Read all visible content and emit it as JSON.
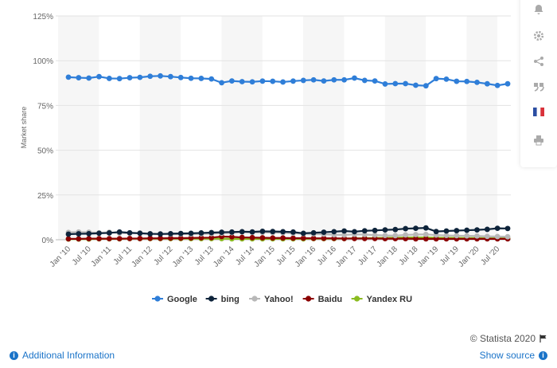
{
  "chart_data": {
    "type": "line",
    "ylabel": "Market share",
    "yticks": [
      "0%",
      "25%",
      "50%",
      "75%",
      "100%",
      "125%"
    ],
    "ylim": [
      0,
      125
    ],
    "x_ticks": [
      "Jan '10",
      "Jul '10",
      "Jan '11",
      "Jul '11",
      "Jan '12",
      "Jul '12",
      "Jan '13",
      "Jul '13",
      "Jan '14",
      "Jul '14",
      "Jan '15",
      "Jul '15",
      "Jan '16",
      "Jul '16",
      "Jan '17",
      "Jul '17",
      "Jan '18",
      "Jul '18",
      "Jan '19",
      "Jul '19",
      "Jan '20",
      "Jul '20"
    ],
    "x": [
      "Jan 2010",
      "Apr 2010",
      "Jul 2010",
      "Oct 2010",
      "Jan 2011",
      "Apr 2011",
      "Jul 2011",
      "Oct 2011",
      "Jan 2012",
      "Apr 2012",
      "Jul 2012",
      "Oct 2012",
      "Jan 2013",
      "Apr 2013",
      "Jul 2013",
      "Oct 2013",
      "Jan 2014",
      "Apr 2014",
      "Jul 2014",
      "Oct 2014",
      "Jan 2015",
      "Apr 2015",
      "Jul 2015",
      "Oct 2015",
      "Jan 2016",
      "Apr 2016",
      "Jul 2016",
      "Oct 2016",
      "Jan 2017",
      "Apr 2017",
      "Jul 2017",
      "Oct 2017",
      "Jan 2018",
      "Apr 2018",
      "Jul 2018",
      "Oct 2018",
      "Jan 2019",
      "Apr 2019",
      "Jul 2019",
      "Oct 2019",
      "Jan 2020",
      "Apr 2020",
      "Jul 2020",
      "Oct 2020"
    ],
    "series": [
      {
        "name": "Google",
        "color": "#2f7ed8",
        "values": [
          90.8,
          90.5,
          90.3,
          91.1,
          90.1,
          90.0,
          90.5,
          90.7,
          91.3,
          91.5,
          91.1,
          90.6,
          90.2,
          90.1,
          89.8,
          87.7,
          88.7,
          88.3,
          88.2,
          88.6,
          88.5,
          88.1,
          88.6,
          89.0,
          89.3,
          88.7,
          89.3,
          89.3,
          90.3,
          89.0,
          88.7,
          87.0,
          87.2,
          87.2,
          86.3,
          86.0,
          90.0,
          89.7,
          88.5,
          88.4,
          87.9,
          87.1,
          86.2,
          87.1
        ]
      },
      {
        "name": "bing",
        "color": "#0d233a",
        "values": [
          3.1,
          3.3,
          3.4,
          3.6,
          3.8,
          4.3,
          3.9,
          3.6,
          3.3,
          3.2,
          3.4,
          3.5,
          3.6,
          3.8,
          4.0,
          4.2,
          4.3,
          4.5,
          4.4,
          4.7,
          4.6,
          4.5,
          4.3,
          3.6,
          3.9,
          4.2,
          4.5,
          4.9,
          4.5,
          5.0,
          5.2,
          5.5,
          5.7,
          6.2,
          6.4,
          6.6,
          4.6,
          4.9,
          5.1,
          5.3,
          5.5,
          5.8,
          6.4,
          6.3
        ]
      },
      {
        "name": "Yahoo!",
        "color": "#b8b8b8",
        "values": [
          4.1,
          4.3,
          4.2,
          3.9,
          4.2,
          3.7,
          3.6,
          3.8,
          3.4,
          3.3,
          3.1,
          3.2,
          3.1,
          3.3,
          3.4,
          3.6,
          3.9,
          4.3,
          4.1,
          4.1,
          4.0,
          3.9,
          3.6,
          3.4,
          3.3,
          3.1,
          2.8,
          2.7,
          3.0,
          2.9,
          2.6,
          2.4,
          2.3,
          2.7,
          2.9,
          3.0,
          2.6,
          2.4,
          2.3,
          2.2,
          2.1,
          1.9,
          1.8,
          1.7
        ]
      },
      {
        "name": "Baidu",
        "color": "#8b0000",
        "values": [
          0.5,
          0.5,
          0.6,
          0.6,
          0.6,
          0.6,
          0.7,
          0.7,
          0.8,
          0.8,
          0.9,
          0.9,
          1.0,
          1.1,
          1.2,
          1.8,
          1.6,
          1.3,
          1.2,
          1.1,
          1.0,
          1.0,
          0.9,
          0.9,
          0.8,
          0.8,
          0.8,
          0.7,
          0.7,
          0.7,
          0.7,
          0.6,
          0.6,
          0.6,
          0.5,
          0.5,
          0.5,
          0.5,
          0.5,
          0.5,
          0.5,
          0.5,
          0.5,
          0.5
        ]
      },
      {
        "name": "Yandex RU",
        "color": "#8bbc21",
        "values": [
          0.4,
          0.4,
          0.4,
          0.5,
          0.5,
          0.5,
          0.6,
          0.6,
          0.6,
          0.6,
          0.6,
          0.6,
          0.6,
          0.6,
          0.6,
          0.6,
          0.5,
          0.5,
          0.5,
          0.5,
          0.5,
          0.5,
          0.5,
          0.5,
          0.6,
          0.6,
          0.6,
          0.7,
          0.8,
          0.9,
          1.0,
          1.1,
          1.2,
          1.3,
          1.3,
          1.3,
          1.2,
          1.1,
          1.1,
          1.0,
          1.0,
          0.9,
          0.9,
          0.9
        ]
      }
    ],
    "grid": true,
    "legend": "bottom-center"
  },
  "footer": {
    "credit": "© Statista 2020",
    "additional_info": "Additional Information",
    "show_source": "Show source"
  },
  "icons": {
    "side": [
      "bell-icon",
      "gear-icon",
      "share-icon",
      "quote-icon",
      "french-flag-icon",
      "print-icon"
    ],
    "flag_icon": "flag-icon",
    "info_icon": "info-icon"
  }
}
